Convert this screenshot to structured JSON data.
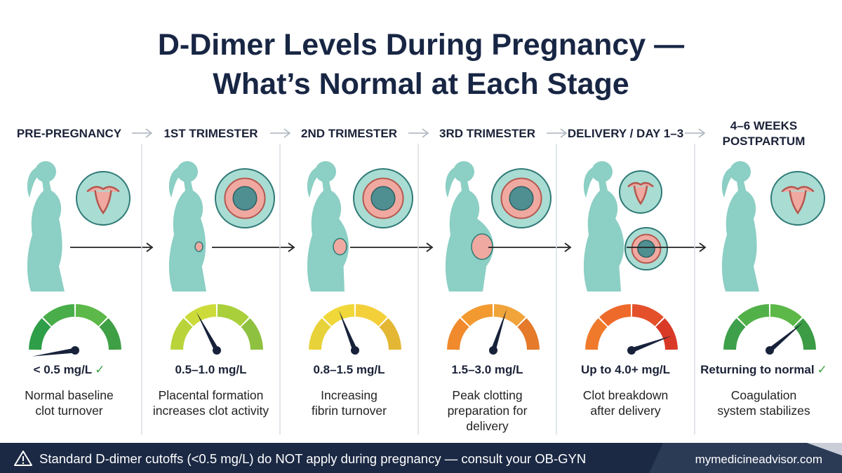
{
  "title": [
    "D-Dimer Levels During Pregnancy —",
    "What’s Normal at Each Stage"
  ],
  "stages": [
    {
      "label": [
        "PRE-PREGNANCY"
      ],
      "level": "< 0.5 mg/L",
      "check": "✓",
      "description": [
        "Normal baseline",
        "clot turnover"
      ]
    },
    {
      "label": [
        "1ST TRIMESTER"
      ],
      "level": "0.5–1.0 mg/L",
      "description": [
        "Placental formation",
        "increases clot activity"
      ]
    },
    {
      "label": [
        "2ND TRIMESTER"
      ],
      "level": "0.8–1.5 mg/L",
      "description": [
        "Increasing",
        "fibrin turnover"
      ]
    },
    {
      "label": [
        "3RD TRIMESTER"
      ],
      "level": "1.5–3.0 mg/L",
      "description": [
        "Peak clotting",
        "preparation for",
        "delivery"
      ]
    },
    {
      "label": [
        "DELIVERY / DAY 1–3"
      ],
      "level": "Up to 4.0+ mg/L",
      "description": [
        "Clot breakdown",
        "after delivery"
      ]
    },
    {
      "label": [
        "4–6 WEEKS",
        "POSTPARTUM"
      ],
      "level": "Returning to normal",
      "check": "✓",
      "description": [
        "Coagulation",
        "system stabilizes"
      ]
    }
  ],
  "footer": {
    "warning": "Standard D-dimer cutoffs (<0.5 mg/L) do NOT apply during pregnancy — consult your OB-GYN",
    "site": "mymedicineadvisor.com"
  }
}
